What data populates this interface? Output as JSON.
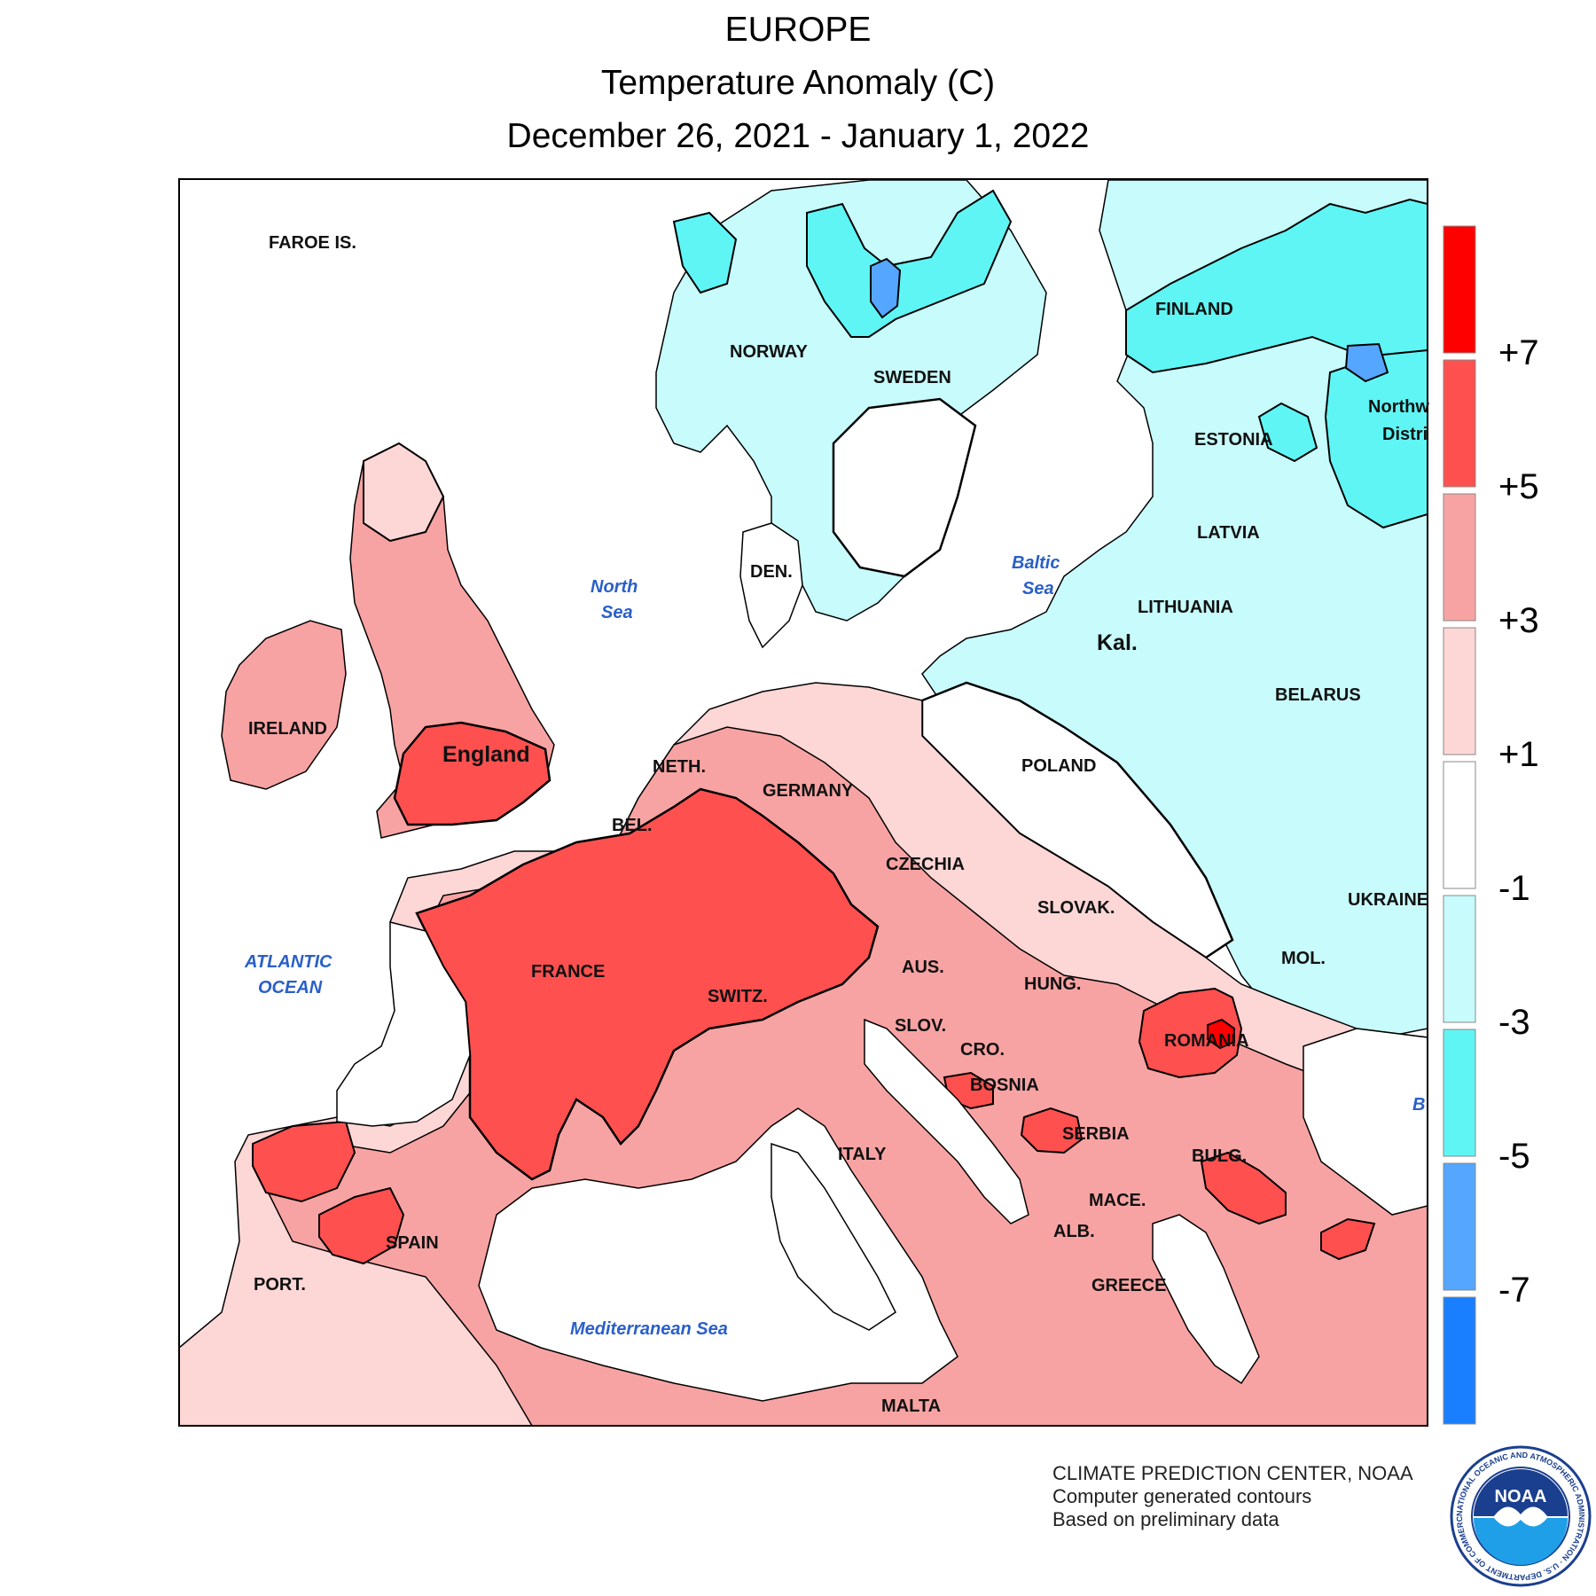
{
  "title": {
    "line1": "EUROPE",
    "line2": "Temperature Anomaly (C)",
    "line3": "December 26, 2021 - January 1, 2022"
  },
  "map": {
    "anomaly_bins": [
      {
        "range": "above +7",
        "color": "#ff0000"
      },
      {
        "range": "+5 to +7",
        "color": "#ff5050"
      },
      {
        "range": "+3 to +5",
        "color": "#f8a3a3"
      },
      {
        "range": "+1 to +3",
        "color": "#fdd6d6"
      },
      {
        "range": "-1 to +1",
        "color": "#ffffff"
      },
      {
        "range": "-3 to -1",
        "color": "#c8fbfb"
      },
      {
        "range": "-5 to -3",
        "color": "#5ff5f5"
      },
      {
        "range": "-7 to -5",
        "color": "#55a6ff"
      },
      {
        "range": "below -7",
        "color": "#1a7fff"
      }
    ],
    "labels": {
      "faroe": "FAROE IS.",
      "norway": "NORWAY",
      "sweden": "SWEDEN",
      "finland": "FINLAND",
      "northwest": "Northw",
      "district": "Distri",
      "estonia": "ESTONIA",
      "latvia": "LATVIA",
      "lithuania": "LITHUANIA",
      "kal": "Kal.",
      "belarus": "BELARUS",
      "ireland": "IRELAND",
      "england": "England",
      "den": "DEN.",
      "neth": "NETH.",
      "bel": "BEL.",
      "germany": "GERMANY",
      "poland": "POLAND",
      "czechia": "CZECHIA",
      "slovak": "SLOVAK.",
      "ukraine": "UKRAINE",
      "mol": "MOL.",
      "france": "FRANCE",
      "switz": "SWITZ.",
      "aus": "AUS.",
      "hung": "HUNG.",
      "slov": "SLOV.",
      "cro": "CRO.",
      "romania": "ROMANIA",
      "bosnia": "BOSNIA",
      "serbia": "SERBIA",
      "bulg": "BULG.",
      "italy": "ITALY",
      "mace": "MACE.",
      "alb": "ALB.",
      "greece": "GREECE",
      "spain": "SPAIN",
      "port": "PORT.",
      "malta": "MALTA"
    },
    "water_labels": {
      "north_sea_1": "North",
      "north_sea_2": "Sea",
      "baltic_1": "Baltic",
      "baltic_2": "Sea",
      "atlantic_1": "ATLANTIC",
      "atlantic_2": "OCEAN",
      "mediterranean": "Mediterranean Sea",
      "black_sea_partial": "B"
    }
  },
  "legend": {
    "colors": [
      "#ff0000",
      "#ff5050",
      "#f8a3a3",
      "#fdd6d6",
      "#ffffff",
      "#c8fbfb",
      "#5ff5f5",
      "#55a6ff",
      "#1a7fff"
    ],
    "ticks": [
      "+7",
      "+5",
      "+3",
      "+1",
      "-1",
      "-3",
      "-5",
      "-7"
    ]
  },
  "credits": {
    "line1": "CLIMATE PREDICTION CENTER, NOAA",
    "line2": "Computer generated contours",
    "line3": "Based on preliminary data"
  },
  "logo": {
    "text": "NOAA",
    "ring_text": "NATIONAL OCEANIC AND ATMOSPHERIC ADMINISTRATION · U.S. DEPARTMENT OF COMMERCE"
  }
}
